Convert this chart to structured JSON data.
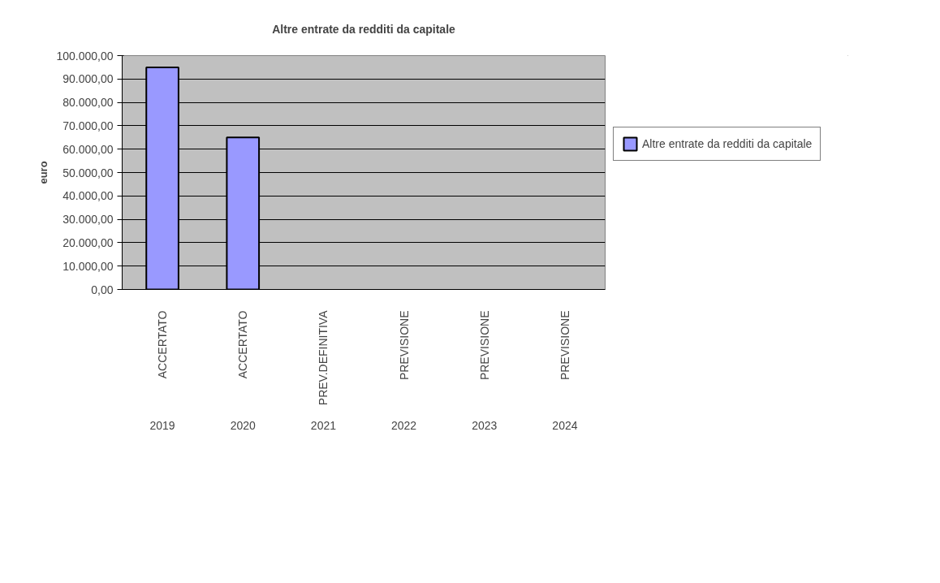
{
  "chart_data": {
    "type": "bar",
    "title": "Altre entrate da redditi da capitale",
    "ylabel": "euro",
    "categories": [
      "ACCERTATO",
      "ACCERTATO",
      "PREV.DEFINITIVA",
      "PREVISIONE",
      "PREVISIONE",
      "PREVISIONE"
    ],
    "annotations": [
      "2019",
      "2020",
      "2021",
      "2022",
      "2023",
      "2024"
    ],
    "series": [
      {
        "name": "Altre entrate da redditi da capitale",
        "color": "#9999ff",
        "values": [
          95000,
          65000,
          null,
          null,
          null,
          null
        ]
      }
    ],
    "ylim": [
      0,
      100000
    ],
    "yticks": [
      {
        "value": 0,
        "label": "0,00"
      },
      {
        "value": 10000,
        "label": "10.000,00"
      },
      {
        "value": 20000,
        "label": "20.000,00"
      },
      {
        "value": 30000,
        "label": "30.000,00"
      },
      {
        "value": 40000,
        "label": "40.000,00"
      },
      {
        "value": 50000,
        "label": "50.000,00"
      },
      {
        "value": 60000,
        "label": "60.000,00"
      },
      {
        "value": 70000,
        "label": "70.000,00"
      },
      {
        "value": 80000,
        "label": "80.000,00"
      },
      {
        "value": 90000,
        "label": "90.000,00"
      },
      {
        "value": 100000,
        "label": "100.000,00"
      }
    ],
    "grid": "y",
    "legend": "right"
  }
}
